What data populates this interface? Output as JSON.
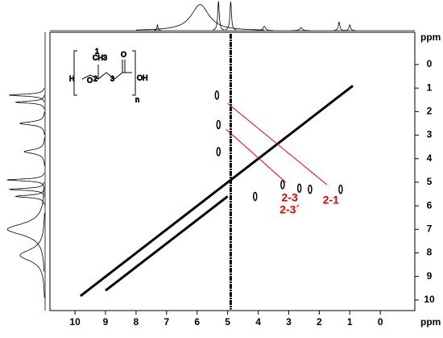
{
  "chart_data": {
    "type": "contour",
    "xlabel": "ppm",
    "ylabel": "ppm",
    "xlim": [
      10.82,
      -1.13
    ],
    "ylim": [
      -1.37,
      10.45
    ],
    "xticks": [
      10,
      9,
      8,
      7,
      6,
      5,
      4,
      3,
      2,
      1,
      0
    ],
    "yticks": [
      0,
      1,
      2,
      3,
      4,
      5,
      6,
      7,
      8,
      9,
      10
    ],
    "color": "#000000",
    "diagonal": {
      "x": [
        9.82,
        0.9
      ],
      "y": [
        9.83,
        0.9
      ]
    },
    "diagonal_offset": {
      "x": [
        9.0,
        5.0
      ],
      "y": [
        9.6,
        5.6
      ]
    },
    "peaks": {
      "x": [
        5.35,
        1.3,
        5.3,
        2.65,
        5.3,
        3.2,
        4.1,
        2.3
      ],
      "y": [
        1.3,
        5.3,
        2.55,
        5.25,
        3.7,
        5.1,
        5.6,
        5.3
      ]
    },
    "streak": {
      "x": 4.9,
      "y": [
        -1.3,
        10.4
      ]
    },
    "top_projection": {
      "x": [
        7.3,
        5.9,
        5.3,
        4.9,
        3.8,
        2.6,
        1.35,
        1.0
      ],
      "values": [
        0.2,
        0.9,
        1.0,
        1.0,
        0.15,
        0.1,
        0.3,
        0.2
      ],
      "widths": [
        0.02,
        0.35,
        0.03,
        0.03,
        0.05,
        0.05,
        0.03,
        0.03
      ]
    },
    "left_projection": {
      "y": [
        1.3,
        1.6,
        2.5,
        3.7,
        4.9,
        5.3,
        5.6,
        7.0,
        8.1
      ],
      "values": [
        0.85,
        0.7,
        0.6,
        0.5,
        0.9,
        0.85,
        0.7,
        0.9,
        0.6
      ],
      "widths": [
        0.05,
        0.05,
        0.08,
        0.1,
        0.05,
        0.05,
        0.06,
        0.3,
        0.3
      ]
    },
    "annotations": [
      {
        "label": "2-1",
        "line": [
          [
            5.0,
            1.65
          ],
          [
            1.75,
            5.1
          ]
        ]
      },
      {
        "label": "2-3",
        "label2": "2-3´",
        "line": [
          [
            5.05,
            2.75
          ],
          [
            3.1,
            5.0
          ]
        ]
      }
    ],
    "structure": {
      "labels": [
        "H",
        "O",
        "CH3",
        "OH",
        "O",
        "n",
        "1",
        "2",
        "3"
      ]
    }
  }
}
